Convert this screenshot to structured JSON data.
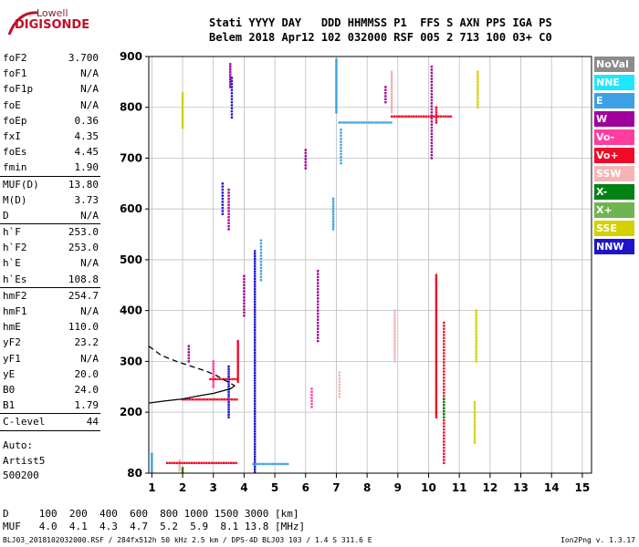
{
  "logo": {
    "brand": "Lowell",
    "product": "DIGISONDE"
  },
  "header": {
    "line1": "Stati YYYY DAY   DDD HHMMSS P1  FFS S AXN PPS IGA PS",
    "line2": "Belem 2018 Apr12 102 032000 RSF 005 2 713 100 03+ C0"
  },
  "params": [
    {
      "k": "foF2",
      "v": "3.700"
    },
    {
      "k": "foF1",
      "v": "N/A"
    },
    {
      "k": "foF1p",
      "v": "N/A"
    },
    {
      "k": "foE",
      "v": "N/A"
    },
    {
      "k": "foEp",
      "v": "0.36"
    },
    {
      "k": "fxI",
      "v": "4.35"
    },
    {
      "k": "foEs",
      "v": "4.45"
    },
    {
      "k": "fmin",
      "v": "1.90",
      "sep": true
    },
    {
      "k": "MUF(D)",
      "v": "13.80"
    },
    {
      "k": "M(D)",
      "v": "3.73"
    },
    {
      "k": "D",
      "v": "N/A",
      "sep": true
    },
    {
      "k": "h`F",
      "v": "253.0"
    },
    {
      "k": "h`F2",
      "v": "253.0"
    },
    {
      "k": "h`E",
      "v": "N/A"
    },
    {
      "k": "h`Es",
      "v": "108.8",
      "sep": true
    },
    {
      "k": "hmF2",
      "v": "254.7"
    },
    {
      "k": "hmF1",
      "v": "N/A"
    },
    {
      "k": "hmE",
      "v": "110.0"
    },
    {
      "k": "yF2",
      "v": "23.2"
    },
    {
      "k": "yF1",
      "v": "N/A"
    },
    {
      "k": "yE",
      "v": "20.0"
    },
    {
      "k": "B0",
      "v": "24.0"
    },
    {
      "k": "B1",
      "v": "1.79",
      "sep": true
    },
    {
      "k": "C-level",
      "v": "44",
      "sep": true
    }
  ],
  "auto": {
    "line1": "Auto:",
    "line2": "Artist5",
    "line3": "500200"
  },
  "legend": [
    {
      "label": "NoVal",
      "color": "#8c8c8c"
    },
    {
      "label": "NNE",
      "color": "#1ee6ff"
    },
    {
      "label": "E",
      "color": "#3ca0e6"
    },
    {
      "label": "W",
      "color": "#a0009b"
    },
    {
      "label": "Vo-",
      "color": "#ff3ca0"
    },
    {
      "label": "Vo+",
      "color": "#f00a28"
    },
    {
      "label": "SSW",
      "color": "#f5b4b4"
    },
    {
      "label": "X-",
      "color": "#008214"
    },
    {
      "label": "X+",
      "color": "#6eb450"
    },
    {
      "label": "SSE",
      "color": "#d2d200"
    },
    {
      "label": "NNW",
      "color": "#1e14c8"
    }
  ],
  "bottom": {
    "line1": "D     100  200  400  600  800 1000 1500 3000 [km]",
    "line2": "MUF   4.0  4.1  4.3  4.7  5.2  5.9  8.1 13.8 [MHz]"
  },
  "footer": {
    "left": "BLJ03_2018102032000.RSF / 284fx512h 50 kHz 2.5 km / DPS-4D BLJ03 103 / 1.4 S 311.6 E",
    "right": "Ion2Png v. 1.3.17"
  },
  "chart_data": {
    "type": "scatter",
    "title": "",
    "xlabel": "",
    "ylabel": "",
    "xlim": [
      0.9,
      15.3
    ],
    "ylim": [
      80,
      900
    ],
    "xticks": [
      1,
      2,
      3,
      4,
      5,
      6,
      7,
      8,
      9,
      10,
      11,
      12,
      13,
      14,
      15
    ],
    "yticks": [
      80,
      200,
      300,
      400,
      500,
      600,
      700,
      800,
      900
    ],
    "grid": true,
    "trace_series": [
      {
        "name": "profile-solid",
        "style": "solid",
        "x": [
          0.9,
          1.4,
          2.0,
          2.6,
          3.0,
          3.3,
          3.55,
          3.7
        ],
        "y": [
          218,
          222,
          226,
          233,
          237,
          242,
          246,
          252
        ]
      },
      {
        "name": "profile-dashed",
        "style": "dashed",
        "x": [
          0.9,
          1.3,
          1.8,
          2.3,
          2.8,
          3.1,
          3.4,
          3.7
        ],
        "y": [
          330,
          312,
          300,
          290,
          280,
          272,
          262,
          252
        ]
      }
    ],
    "echo_series": [
      {
        "mode": "W",
        "color": "#a0009b",
        "segments": [
          {
            "x": 3.55,
            "y1": 840,
            "y2": 885,
            "step": 5
          },
          {
            "x": 3.5,
            "y1": 560,
            "y2": 640,
            "step": 6
          },
          {
            "x": 2.2,
            "y1": 300,
            "y2": 330,
            "step": 6
          },
          {
            "x": 6.0,
            "y1": 680,
            "y2": 720,
            "step": 6
          },
          {
            "x": 8.6,
            "y1": 810,
            "y2": 840,
            "step": 6
          },
          {
            "x": 10.1,
            "y1": 700,
            "y2": 880,
            "step": 6
          },
          {
            "x": 6.4,
            "y1": 340,
            "y2": 480,
            "step": 6
          },
          {
            "x": 4.0,
            "y1": 390,
            "y2": 470,
            "step": 6
          }
        ]
      },
      {
        "mode": "E",
        "color": "#3ca0e6",
        "segments": [
          {
            "x": 7.0,
            "y1": 790,
            "y2": 895,
            "step": 4
          },
          {
            "x": 6.9,
            "y1": 560,
            "y2": 620,
            "step": 5
          },
          {
            "x": 1.0,
            "y1": 82,
            "y2": 120,
            "step": 4
          },
          {
            "x": 7.15,
            "y1": 690,
            "y2": 760,
            "step": 6
          },
          {
            "x": 4.55,
            "y1": 460,
            "y2": 540,
            "step": 6
          }
        ]
      },
      {
        "mode": "NNW",
        "color": "#1e14c8",
        "segments": [
          {
            "x": 4.35,
            "y1": 82,
            "y2": 520,
            "step": 5
          },
          {
            "x": 3.5,
            "y1": 190,
            "y2": 290,
            "step": 5
          },
          {
            "x": 3.3,
            "y1": 590,
            "y2": 650,
            "step": 6
          },
          {
            "x": 3.6,
            "y1": 780,
            "y2": 860,
            "step": 6
          }
        ]
      },
      {
        "mode": "Vo+",
        "color": "#f00a28",
        "segments": [
          {
            "x": 10.25,
            "y1": 190,
            "y2": 470,
            "step": 4
          },
          {
            "x": 10.5,
            "y1": 100,
            "y2": 380,
            "step": 6
          },
          {
            "x": 3.8,
            "y1": 260,
            "y2": 340,
            "step": 4
          },
          {
            "x": 10.25,
            "y1": 770,
            "y2": 800,
            "step": 5
          }
        ]
      },
      {
        "mode": "SSW",
        "color": "#f5b4b4",
        "segments": [
          {
            "x": 8.8,
            "y1": 790,
            "y2": 870,
            "step": 4
          },
          {
            "x": 8.9,
            "y1": 300,
            "y2": 400,
            "step": 5
          },
          {
            "x": 1.9,
            "y1": 85,
            "y2": 105,
            "step": 4
          },
          {
            "x": 7.1,
            "y1": 230,
            "y2": 280,
            "step": 6
          }
        ]
      },
      {
        "mode": "SSE",
        "color": "#d2d200",
        "segments": [
          {
            "x": 2.0,
            "y1": 760,
            "y2": 830,
            "step": 4
          },
          {
            "x": 11.6,
            "y1": 800,
            "y2": 870,
            "step": 5
          },
          {
            "x": 11.55,
            "y1": 300,
            "y2": 400,
            "step": 5
          },
          {
            "x": 11.5,
            "y1": 140,
            "y2": 220,
            "step": 5
          }
        ]
      },
      {
        "mode": "Vo-",
        "color": "#ff3ca0",
        "segments": [
          {
            "x": 3.0,
            "y1": 250,
            "y2": 300,
            "step": 5
          },
          {
            "x": 6.2,
            "y1": 210,
            "y2": 250,
            "step": 6
          }
        ]
      },
      {
        "mode": "X-",
        "color": "#008214",
        "segments": [
          {
            "x": 10.5,
            "y1": 190,
            "y2": 230,
            "step": 6
          },
          {
            "x": 2.0,
            "y1": 82,
            "y2": 90,
            "step": 4
          }
        ]
      }
    ],
    "hbands": [
      {
        "color": "#3ca0e6",
        "y": 770,
        "x1": 7.1,
        "x2": 8.8
      },
      {
        "color": "#f00a28",
        "y": 782,
        "x1": 8.8,
        "x2": 10.8
      },
      {
        "color": "#f00a28",
        "y": 225,
        "x1": 2.0,
        "x2": 3.8
      },
      {
        "color": "#f00a28",
        "y": 265,
        "x1": 2.9,
        "x2": 3.8
      },
      {
        "color": "#f00a28",
        "y": 100,
        "x1": 1.5,
        "x2": 3.8
      },
      {
        "color": "#3ca0e6",
        "y": 98,
        "x1": 4.3,
        "x2": 5.5
      }
    ]
  }
}
